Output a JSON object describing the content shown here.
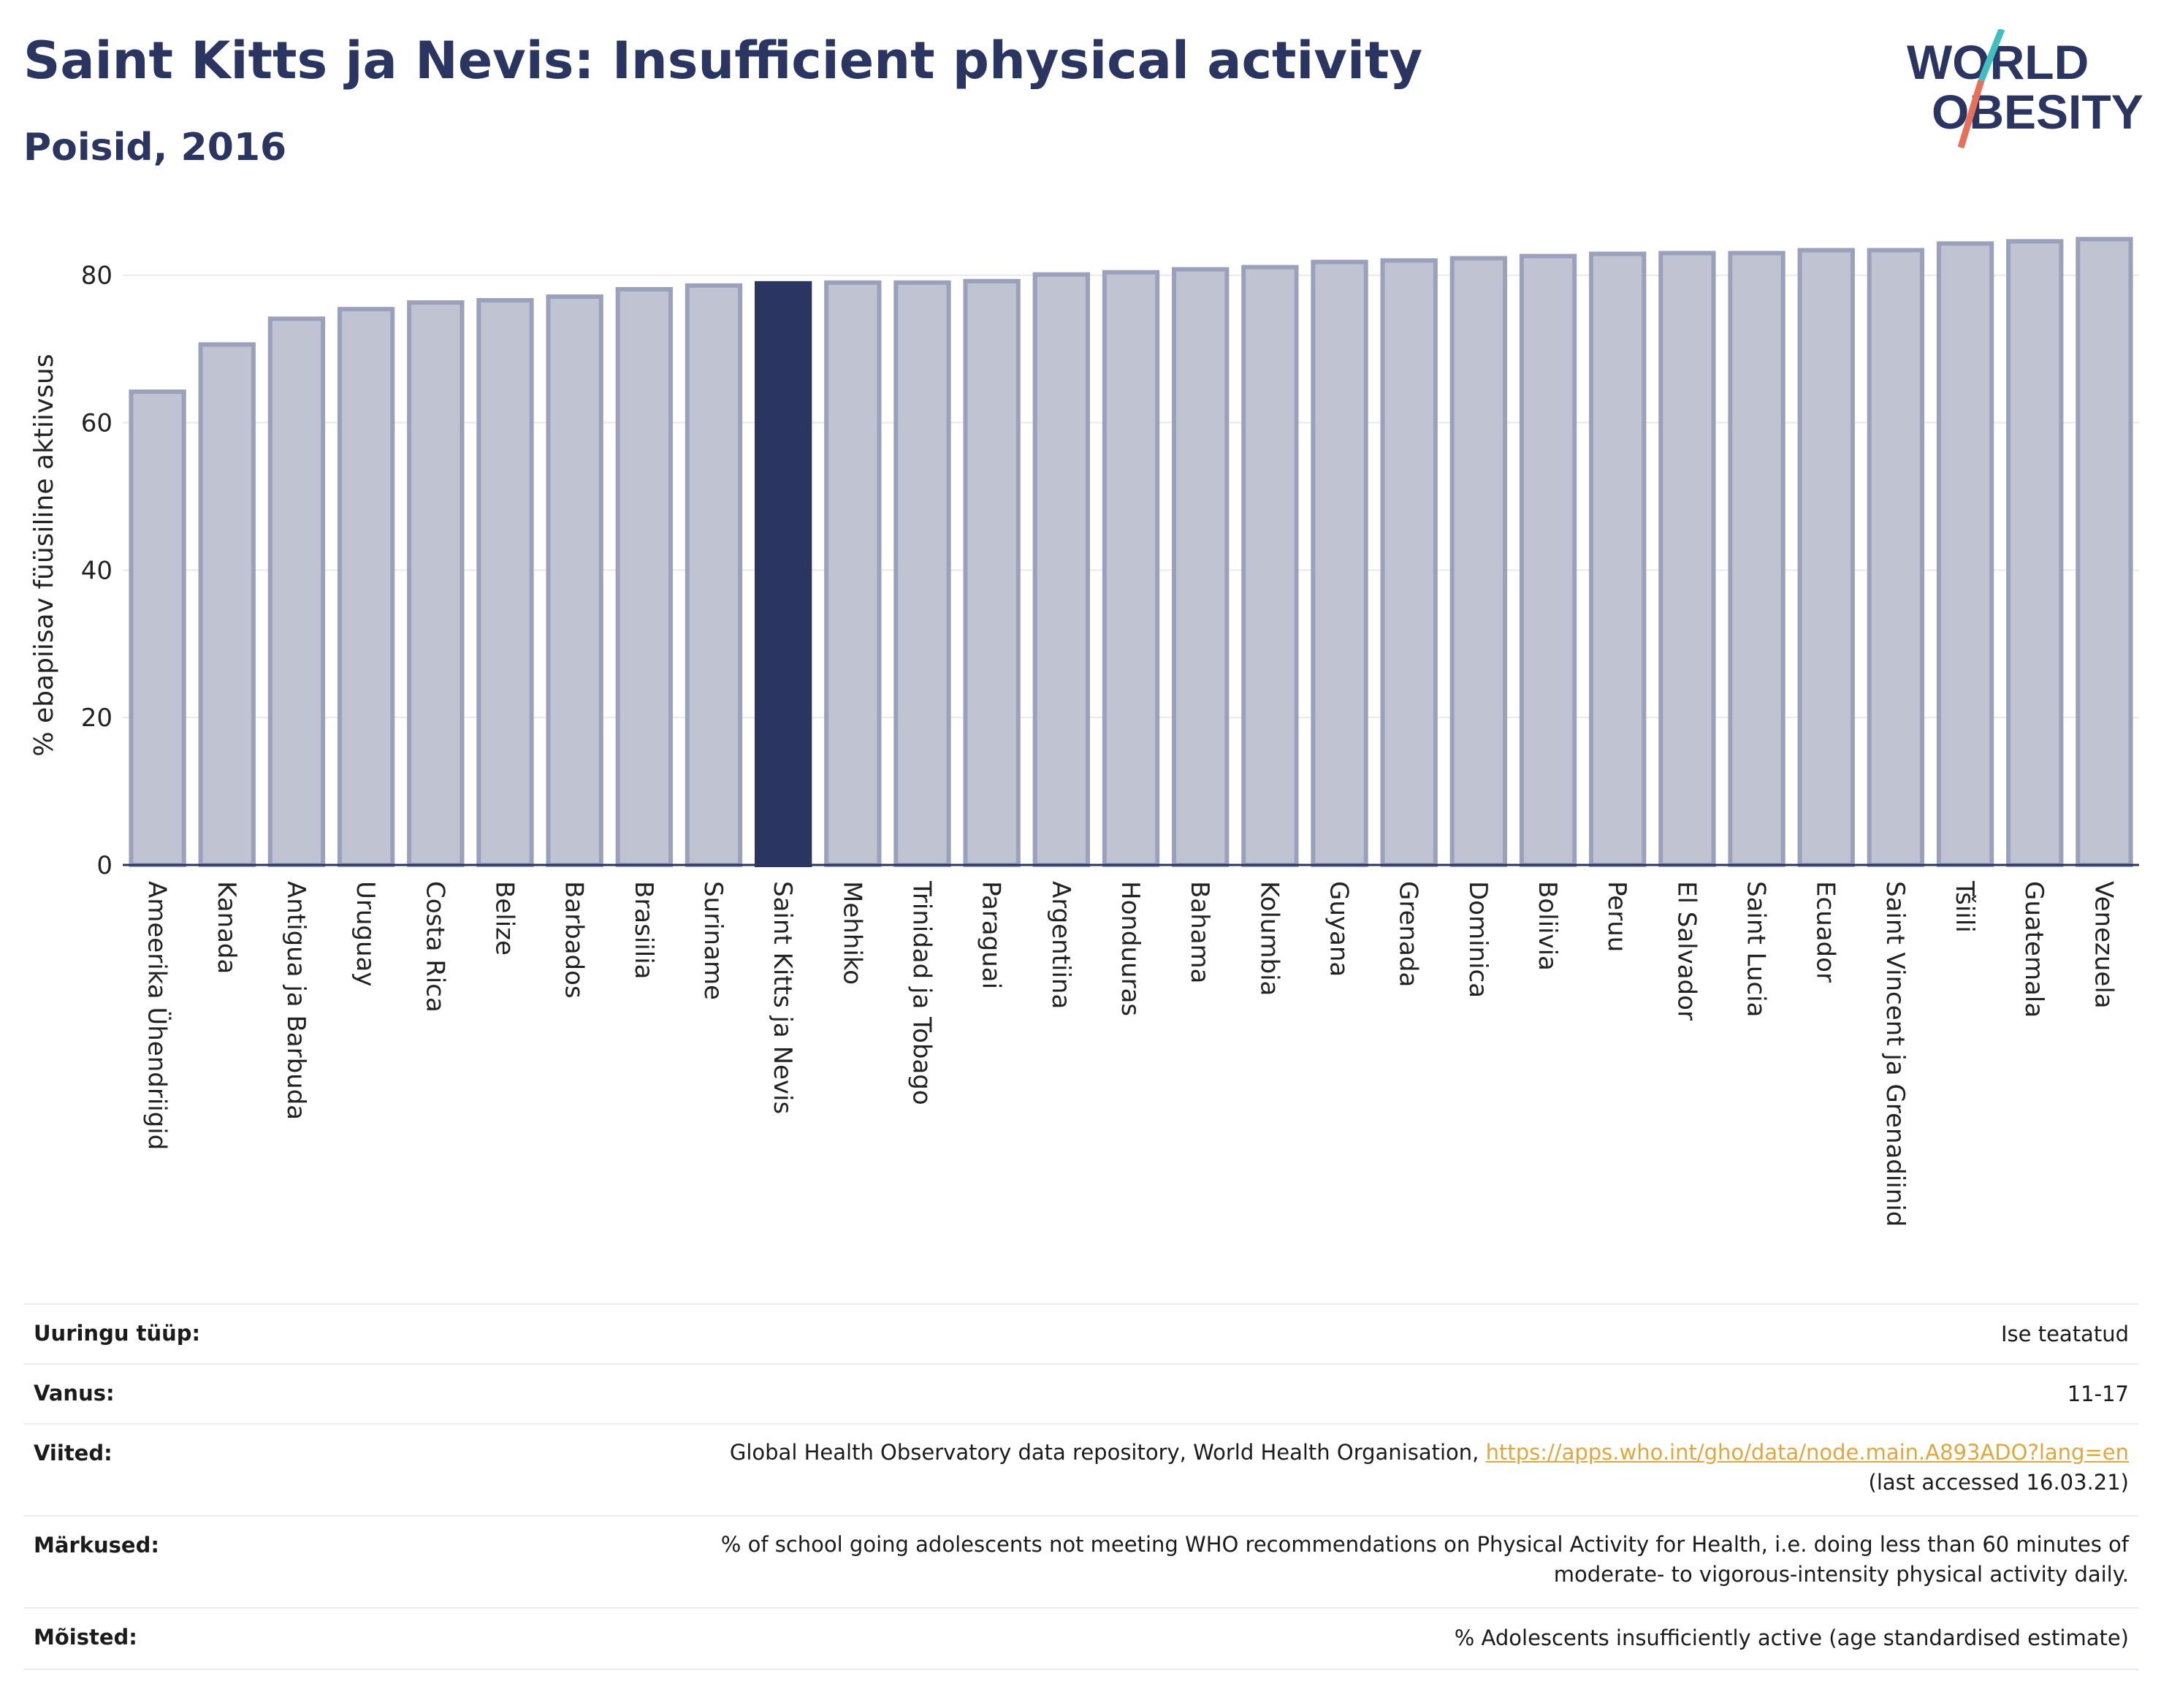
{
  "header": {
    "title": "Saint Kitts ja Nevis: Insufficient physical activity",
    "subtitle": "Poisid, 2016",
    "logo": {
      "line1": "WORLD",
      "line2": "OBESITY"
    }
  },
  "colors": {
    "highlight": "#2a3561",
    "bar_fill": "#c0c3d1",
    "bar_stroke": "#9ba1ba",
    "title": "#2a3561",
    "link": "#e3a63c",
    "logo_slash_top": "#3fbfbf",
    "logo_slash_bottom": "#e8705a"
  },
  "chart_data": {
    "type": "bar",
    "ylabel": "% ebapiisav füüsiline aktiivsus",
    "ylim": [
      0,
      88
    ],
    "yticks": [
      0,
      20,
      40,
      60,
      80
    ],
    "grid": true,
    "highlight": "Saint Kitts ja Nevis",
    "categories": [
      "Ameerika Ühendriigid",
      "Kanada",
      "Antigua ja Barbuda",
      "Uruguay",
      "Costa Rica",
      "Belize",
      "Barbados",
      "Brasiilia",
      "Suriname",
      "Saint Kitts ja Nevis",
      "Mehhiko",
      "Trinidad ja Tobago",
      "Paraguai",
      "Argentiina",
      "Honduuras",
      "Bahama",
      "Kolumbia",
      "Guyana",
      "Grenada",
      "Dominica",
      "Boliivia",
      "Peruu",
      "El Salvador",
      "Saint Lucia",
      "Ecuador",
      "Saint Vincent ja Grenadiinid",
      "Tšiili",
      "Guatemala",
      "Venezuela"
    ],
    "values": [
      64.2,
      70.6,
      74.1,
      75.4,
      76.3,
      76.6,
      77.1,
      78.1,
      78.6,
      78.9,
      79.0,
      79.0,
      79.2,
      80.1,
      80.4,
      80.8,
      81.1,
      81.8,
      82.0,
      82.3,
      82.6,
      82.9,
      83.0,
      83.0,
      83.4,
      83.4,
      84.3,
      84.6,
      84.9
    ]
  },
  "meta": [
    {
      "label": "Uuringu tüüp:",
      "value": "Ise teatatud"
    },
    {
      "label": "Vanus:",
      "value": "11-17"
    },
    {
      "label": "Viited:",
      "value": "Global Health Observatory data repository, World Health Organisation,",
      "link": "https://apps.who.int/gho/data/node.main.A893ADO?lang=en",
      "value2": "(last accessed 16.03.21)"
    },
    {
      "label": "Märkused:",
      "value": "% of school going adolescents not meeting WHO recommendations on Physical Activity for Health, i.e. doing less than 60 minutes of",
      "value2": "moderate- to vigorous-intensity physical activity daily."
    },
    {
      "label": "Mõisted:",
      "value": "% Adolescents insufficiently active (age standardised estimate)"
    }
  ]
}
